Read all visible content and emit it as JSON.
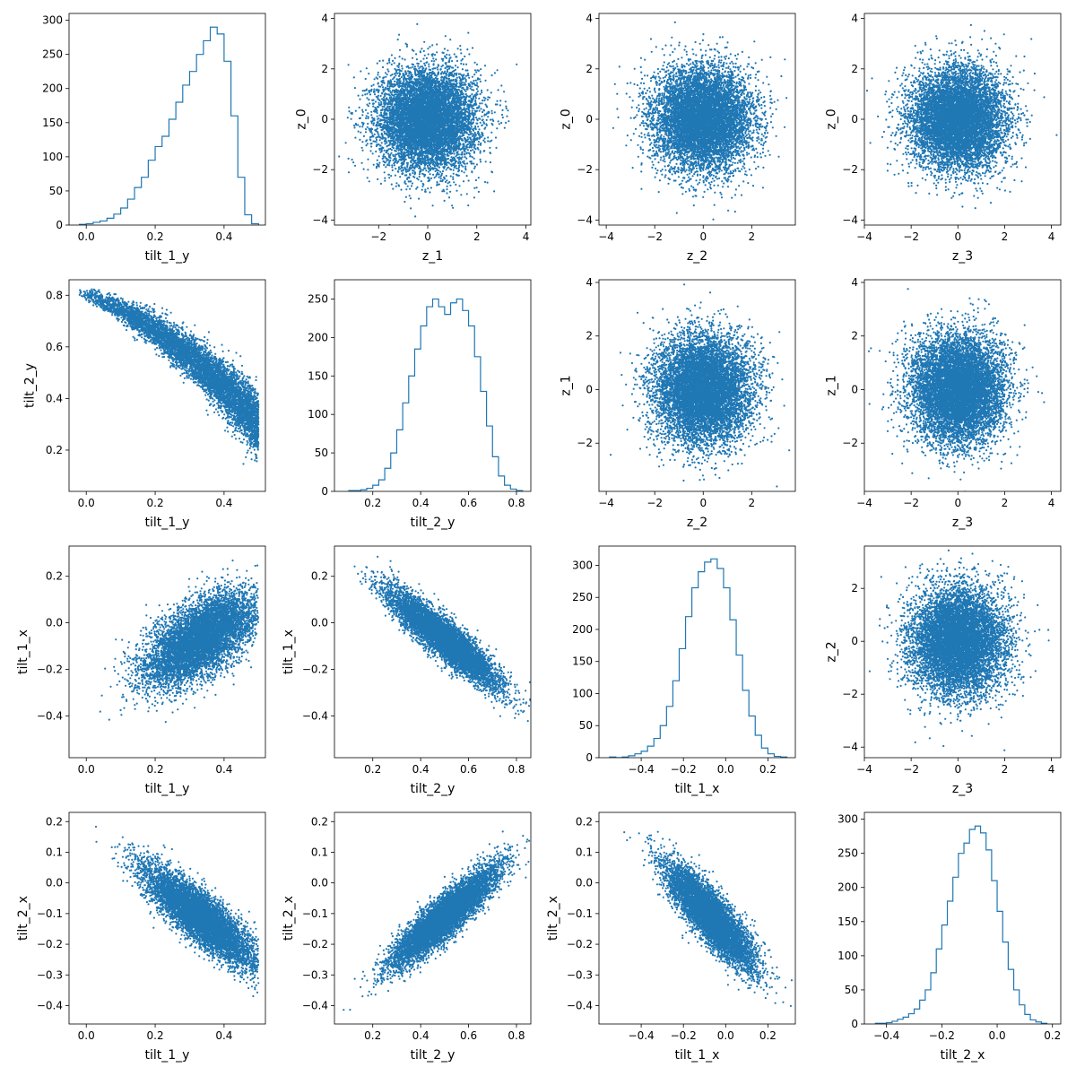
{
  "figure": {
    "accent_color": "#1f77b4",
    "axis_color": "#000000",
    "background": "#ffffff"
  },
  "chart_data": [
    {
      "type": "histogram",
      "row": 0,
      "col": 0,
      "xlabel": "tilt_1_y",
      "ylabel": "",
      "xlim": [
        -0.05,
        0.52
      ],
      "ylim": [
        0,
        310
      ],
      "xticks": [
        0.0,
        0.2,
        0.4
      ],
      "xtick_labels": [
        "0.0",
        "0.2",
        "0.4"
      ],
      "yticks": [
        0,
        50,
        100,
        150,
        200,
        250,
        300
      ],
      "ytick_labels": [
        "0",
        "50",
        "100",
        "150",
        "200",
        "250",
        "300"
      ],
      "bin_edges": [
        -0.02,
        0.0,
        0.02,
        0.04,
        0.06,
        0.08,
        0.1,
        0.12,
        0.14,
        0.16,
        0.18,
        0.2,
        0.22,
        0.24,
        0.26,
        0.28,
        0.3,
        0.32,
        0.34,
        0.36,
        0.38,
        0.4,
        0.42,
        0.44,
        0.46,
        0.48,
        0.5
      ],
      "counts": [
        1,
        2,
        4,
        6,
        10,
        16,
        25,
        38,
        55,
        70,
        95,
        115,
        130,
        155,
        180,
        205,
        225,
        250,
        270,
        290,
        280,
        240,
        160,
        70,
        15,
        2
      ]
    },
    {
      "type": "scatter",
      "row": 0,
      "col": 1,
      "xlabel": "z_1",
      "ylabel": "z_0",
      "xlim": [
        -3.8,
        4.2
      ],
      "ylim": [
        -4.2,
        4.2
      ],
      "xticks": [
        -2,
        0,
        2,
        4
      ],
      "xtick_labels": [
        "−2",
        "0",
        "2",
        "4"
      ],
      "yticks": [
        -4,
        -2,
        0,
        2,
        4
      ],
      "ytick_labels": [
        "−4",
        "−2",
        "0",
        "2",
        "4"
      ],
      "distribution": {
        "kind": "gaussian",
        "n": 8000,
        "mean_x": 0.0,
        "sd_x": 1.0,
        "mean_y": 0.0,
        "sd_y": 1.0,
        "corr": 0.0
      }
    },
    {
      "type": "scatter",
      "row": 0,
      "col": 2,
      "xlabel": "z_2",
      "ylabel": "z_0",
      "xlim": [
        -4.3,
        3.8
      ],
      "ylim": [
        -4.2,
        4.2
      ],
      "xticks": [
        -4,
        -2,
        0,
        2
      ],
      "xtick_labels": [
        "−4",
        "−2",
        "0",
        "2"
      ],
      "yticks": [
        -4,
        -2,
        0,
        2,
        4
      ],
      "ytick_labels": [
        "−4",
        "−2",
        "0",
        "2",
        "4"
      ],
      "distribution": {
        "kind": "gaussian",
        "n": 8000,
        "mean_x": 0.0,
        "sd_x": 1.0,
        "mean_y": 0.0,
        "sd_y": 1.0,
        "corr": 0.0
      }
    },
    {
      "type": "scatter",
      "row": 0,
      "col": 3,
      "xlabel": "z_3",
      "ylabel": "z_0",
      "xlim": [
        -4.0,
        4.4
      ],
      "ylim": [
        -4.2,
        4.2
      ],
      "xticks": [
        -4,
        -2,
        0,
        2,
        4
      ],
      "xtick_labels": [
        "−4",
        "−2",
        "0",
        "2",
        "4"
      ],
      "yticks": [
        -4,
        -2,
        0,
        2,
        4
      ],
      "ytick_labels": [
        "−4",
        "−2",
        "0",
        "2",
        "4"
      ],
      "distribution": {
        "kind": "gaussian",
        "n": 8000,
        "mean_x": 0.0,
        "sd_x": 1.0,
        "mean_y": 0.0,
        "sd_y": 1.0,
        "corr": 0.0
      }
    },
    {
      "type": "scatter",
      "row": 1,
      "col": 0,
      "xlabel": "tilt_1_y",
      "ylabel": "tilt_2_y",
      "xlim": [
        -0.05,
        0.52
      ],
      "ylim": [
        0.04,
        0.86
      ],
      "xticks": [
        0.0,
        0.2,
        0.4
      ],
      "xtick_labels": [
        "0.0",
        "0.2",
        "0.4"
      ],
      "yticks": [
        0.2,
        0.4,
        0.6,
        0.8
      ],
      "ytick_labels": [
        "0.2",
        "0.4",
        "0.6",
        "0.8"
      ],
      "distribution": {
        "kind": "curve",
        "n": 6000,
        "x_mode": 0.37,
        "x_min": -0.02,
        "x_max": 0.5,
        "y_at_xmin": 0.81,
        "y_at_xmax": 0.3,
        "curvature": 0.55,
        "spread_min": 0.01,
        "spread_max": 0.06
      }
    },
    {
      "type": "histogram",
      "row": 1,
      "col": 1,
      "xlabel": "tilt_2_y",
      "ylabel": "",
      "xlim": [
        0.04,
        0.86
      ],
      "ylim": [
        0,
        275
      ],
      "xticks": [
        0.2,
        0.4,
        0.6,
        0.8
      ],
      "xtick_labels": [
        "0.2",
        "0.4",
        "0.6",
        "0.8"
      ],
      "yticks": [
        0,
        50,
        100,
        150,
        200,
        250
      ],
      "ytick_labels": [
        "0",
        "50",
        "100",
        "150",
        "200",
        "250"
      ],
      "bin_edges": [
        0.1,
        0.125,
        0.15,
        0.175,
        0.2,
        0.225,
        0.25,
        0.275,
        0.3,
        0.325,
        0.35,
        0.375,
        0.4,
        0.425,
        0.45,
        0.475,
        0.5,
        0.525,
        0.55,
        0.575,
        0.6,
        0.625,
        0.65,
        0.675,
        0.7,
        0.725,
        0.75,
        0.775,
        0.8,
        0.825
      ],
      "counts": [
        1,
        1,
        2,
        4,
        8,
        15,
        30,
        50,
        80,
        115,
        150,
        185,
        215,
        240,
        250,
        240,
        230,
        245,
        250,
        235,
        215,
        175,
        130,
        85,
        45,
        20,
        8,
        3,
        1
      ]
    },
    {
      "type": "scatter",
      "row": 1,
      "col": 2,
      "xlabel": "z_2",
      "ylabel": "z_1",
      "xlim": [
        -4.3,
        3.8
      ],
      "ylim": [
        -3.8,
        4.1
      ],
      "xticks": [
        -4,
        -2,
        0,
        2
      ],
      "xtick_labels": [
        "−4",
        "−2",
        "0",
        "2"
      ],
      "yticks": [
        -2,
        0,
        2,
        4
      ],
      "ytick_labels": [
        "−2",
        "0",
        "2",
        "4"
      ],
      "distribution": {
        "kind": "gaussian",
        "n": 8000,
        "mean_x": 0.0,
        "sd_x": 1.0,
        "mean_y": 0.0,
        "sd_y": 1.0,
        "corr": 0.0
      }
    },
    {
      "type": "scatter",
      "row": 1,
      "col": 3,
      "xlabel": "z_3",
      "ylabel": "z_1",
      "xlim": [
        -4.0,
        4.4
      ],
      "ylim": [
        -3.8,
        4.1
      ],
      "xticks": [
        -4,
        -2,
        0,
        2,
        4
      ],
      "xtick_labels": [
        "−4",
        "−2",
        "0",
        "2",
        "4"
      ],
      "yticks": [
        -2,
        0,
        2,
        4
      ],
      "ytick_labels": [
        "−2",
        "0",
        "2",
        "4"
      ],
      "distribution": {
        "kind": "gaussian",
        "n": 8000,
        "mean_x": 0.0,
        "sd_x": 1.0,
        "mean_y": 0.0,
        "sd_y": 1.0,
        "corr": 0.0
      }
    },
    {
      "type": "scatter",
      "row": 2,
      "col": 0,
      "xlabel": "tilt_1_y",
      "ylabel": "tilt_1_x",
      "xlim": [
        -0.05,
        0.52
      ],
      "ylim": [
        -0.58,
        0.33
      ],
      "xticks": [
        0.0,
        0.2,
        0.4
      ],
      "xtick_labels": [
        "0.0",
        "0.2",
        "0.4"
      ],
      "yticks": [
        -0.4,
        -0.2,
        0.0,
        0.2
      ],
      "ytick_labels": [
        "−0.4",
        "−0.2",
        "0.0",
        "0.2"
      ],
      "distribution": {
        "kind": "gaussian",
        "n": 7000,
        "mean_x": 0.33,
        "sd_x": 0.08,
        "mean_y": -0.07,
        "sd_y": 0.1,
        "corr": 0.6,
        "x_max": 0.5
      }
    },
    {
      "type": "scatter",
      "row": 2,
      "col": 1,
      "xlabel": "tilt_2_y",
      "ylabel": "tilt_1_x",
      "xlim": [
        0.04,
        0.86
      ],
      "ylim": [
        -0.58,
        0.33
      ],
      "xticks": [
        0.2,
        0.4,
        0.6,
        0.8
      ],
      "xtick_labels": [
        "0.2",
        "0.4",
        "0.6",
        "0.8"
      ],
      "yticks": [
        -0.4,
        -0.2,
        0.0,
        0.2
      ],
      "ytick_labels": [
        "−0.4",
        "−0.2",
        "0.0",
        "0.2"
      ],
      "distribution": {
        "kind": "gaussian",
        "n": 7000,
        "mean_x": 0.5,
        "sd_x": 0.11,
        "mean_y": -0.07,
        "sd_y": 0.1,
        "corr": -0.9
      }
    },
    {
      "type": "histogram",
      "row": 2,
      "col": 2,
      "xlabel": "tilt_1_x",
      "ylabel": "",
      "xlim": [
        -0.6,
        0.33
      ],
      "ylim": [
        0,
        330
      ],
      "xticks": [
        -0.4,
        -0.2,
        0.0,
        0.2
      ],
      "xtick_labels": [
        "−0.4",
        "−0.2",
        "0.0",
        "0.2"
      ],
      "yticks": [
        0,
        50,
        100,
        150,
        200,
        250,
        300
      ],
      "ytick_labels": [
        "0",
        "50",
        "100",
        "150",
        "200",
        "250",
        "300"
      ],
      "bin_edges": [
        -0.55,
        -0.52,
        -0.49,
        -0.46,
        -0.43,
        -0.4,
        -0.37,
        -0.34,
        -0.31,
        -0.28,
        -0.25,
        -0.22,
        -0.19,
        -0.16,
        -0.13,
        -0.1,
        -0.07,
        -0.04,
        -0.01,
        0.02,
        0.05,
        0.08,
        0.11,
        0.14,
        0.17,
        0.2,
        0.23,
        0.26,
        0.29
      ],
      "counts": [
        1,
        0,
        1,
        3,
        6,
        10,
        18,
        30,
        50,
        80,
        120,
        170,
        220,
        265,
        290,
        305,
        310,
        295,
        265,
        215,
        160,
        105,
        65,
        35,
        15,
        6,
        2,
        1
      ]
    },
    {
      "type": "scatter",
      "row": 2,
      "col": 3,
      "xlabel": "z_3",
      "ylabel": "z_2",
      "xlim": [
        -4.0,
        4.4
      ],
      "ylim": [
        -4.4,
        3.6
      ],
      "xticks": [
        -4,
        -2,
        0,
        2,
        4
      ],
      "xtick_labels": [
        "−4",
        "−2",
        "0",
        "2",
        "4"
      ],
      "yticks": [
        -4,
        -2,
        0,
        2
      ],
      "ytick_labels": [
        "−4",
        "−2",
        "0",
        "2"
      ],
      "distribution": {
        "kind": "gaussian",
        "n": 8000,
        "mean_x": 0.0,
        "sd_x": 1.0,
        "mean_y": 0.0,
        "sd_y": 1.0,
        "corr": 0.0
      }
    },
    {
      "type": "scatter",
      "row": 3,
      "col": 0,
      "xlabel": "tilt_1_y",
      "ylabel": "tilt_2_x",
      "xlim": [
        -0.05,
        0.52
      ],
      "ylim": [
        -0.46,
        0.23
      ],
      "xticks": [
        0.0,
        0.2,
        0.4
      ],
      "xtick_labels": [
        "0.0",
        "0.2",
        "0.4"
      ],
      "yticks": [
        -0.4,
        -0.3,
        -0.2,
        -0.1,
        0.0,
        0.1,
        0.2
      ],
      "ytick_labels": [
        "−0.4",
        "−0.3",
        "−0.2",
        "−0.1",
        "0.0",
        "0.1",
        "0.2"
      ],
      "distribution": {
        "kind": "gaussian",
        "n": 7000,
        "mean_x": 0.33,
        "sd_x": 0.08,
        "mean_y": -0.11,
        "sd_y": 0.08,
        "corr": -0.85,
        "x_max": 0.5
      }
    },
    {
      "type": "scatter",
      "row": 3,
      "col": 1,
      "xlabel": "tilt_2_y",
      "ylabel": "tilt_2_x",
      "xlim": [
        0.04,
        0.86
      ],
      "ylim": [
        -0.46,
        0.23
      ],
      "xticks": [
        0.2,
        0.4,
        0.6,
        0.8
      ],
      "xtick_labels": [
        "0.2",
        "0.4",
        "0.6",
        "0.8"
      ],
      "yticks": [
        -0.4,
        -0.3,
        -0.2,
        -0.1,
        0.0,
        0.1,
        0.2
      ],
      "ytick_labels": [
        "−0.4",
        "−0.3",
        "−0.2",
        "−0.1",
        "0.0",
        "0.1",
        "0.2"
      ],
      "distribution": {
        "kind": "gaussian",
        "n": 7000,
        "mean_x": 0.5,
        "sd_x": 0.11,
        "mean_y": -0.11,
        "sd_y": 0.08,
        "corr": 0.9
      }
    },
    {
      "type": "scatter",
      "row": 3,
      "col": 2,
      "xlabel": "tilt_1_x",
      "ylabel": "tilt_2_x",
      "xlim": [
        -0.6,
        0.33
      ],
      "ylim": [
        -0.46,
        0.23
      ],
      "xticks": [
        -0.4,
        -0.2,
        0.0,
        0.2
      ],
      "xtick_labels": [
        "−0.4",
        "−0.2",
        "0.0",
        "0.2"
      ],
      "yticks": [
        -0.4,
        -0.3,
        -0.2,
        -0.1,
        0.0,
        0.1,
        0.2
      ],
      "ytick_labels": [
        "−0.4",
        "−0.3",
        "−0.2",
        "−0.1",
        "0.0",
        "0.1",
        "0.2"
      ],
      "distribution": {
        "kind": "gaussian",
        "n": 7000,
        "mean_x": -0.07,
        "sd_x": 0.1,
        "mean_y": -0.11,
        "sd_y": 0.08,
        "corr": -0.85
      }
    },
    {
      "type": "histogram",
      "row": 3,
      "col": 3,
      "xlabel": "tilt_2_x",
      "ylabel": "",
      "xlim": [
        -0.48,
        0.23
      ],
      "ylim": [
        0,
        310
      ],
      "xticks": [
        -0.4,
        -0.2,
        0.0,
        0.2
      ],
      "xtick_labels": [
        "−0.4",
        "−0.2",
        "0.0",
        "0.2"
      ],
      "yticks": [
        0,
        50,
        100,
        150,
        200,
        250,
        300
      ],
      "ytick_labels": [
        "0",
        "50",
        "100",
        "150",
        "200",
        "250",
        "300"
      ],
      "bin_edges": [
        -0.44,
        -0.42,
        -0.4,
        -0.38,
        -0.36,
        -0.34,
        -0.32,
        -0.3,
        -0.28,
        -0.26,
        -0.24,
        -0.22,
        -0.2,
        -0.18,
        -0.16,
        -0.14,
        -0.12,
        -0.1,
        -0.08,
        -0.06,
        -0.04,
        -0.02,
        0.0,
        0.02,
        0.04,
        0.06,
        0.08,
        0.1,
        0.12,
        0.14,
        0.16,
        0.18
      ],
      "counts": [
        1,
        1,
        2,
        4,
        7,
        10,
        15,
        22,
        35,
        50,
        75,
        110,
        145,
        180,
        215,
        250,
        265,
        285,
        290,
        280,
        255,
        210,
        165,
        120,
        80,
        50,
        28,
        14,
        6,
        3,
        1
      ]
    }
  ]
}
